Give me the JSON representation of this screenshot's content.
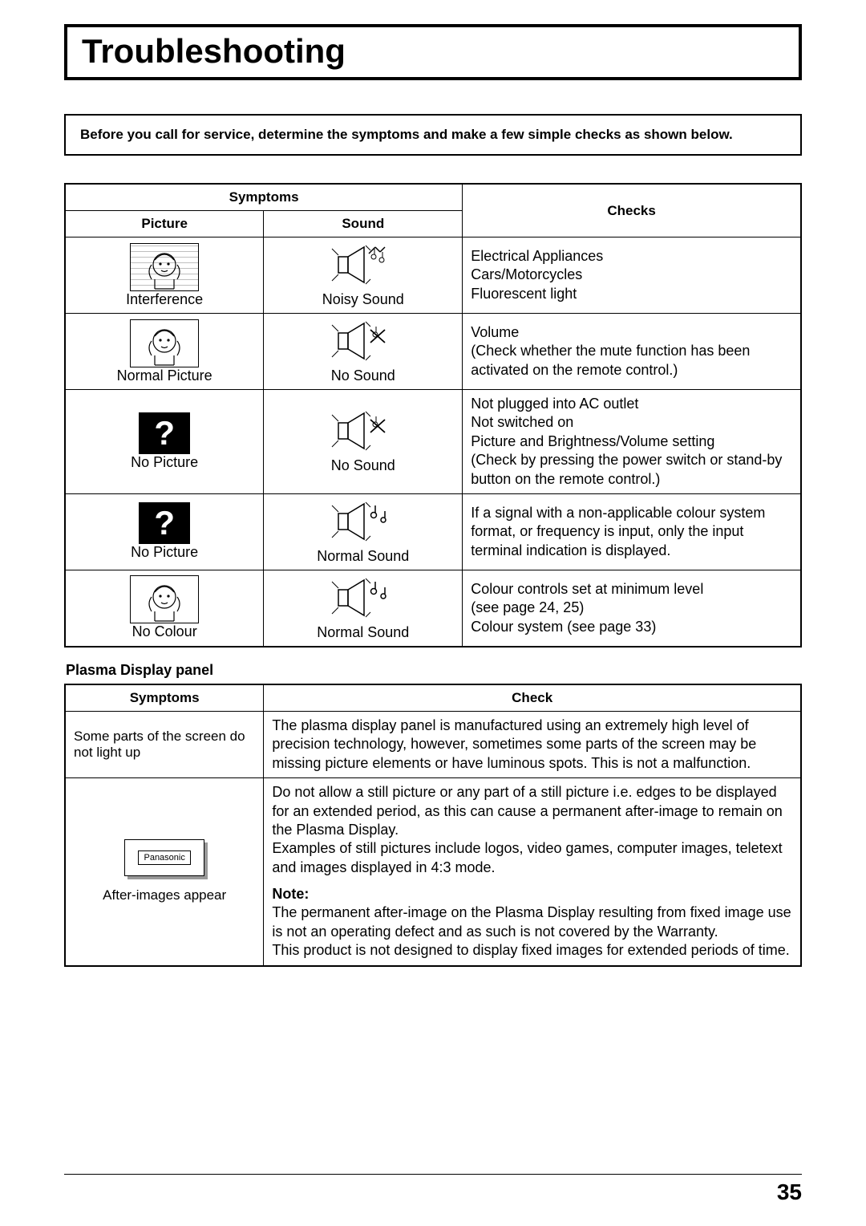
{
  "title": "Troubleshooting",
  "intro": "Before you call for service, determine the symptoms and make a few simple checks as shown below.",
  "table1": {
    "header_symptoms": "Symptoms",
    "header_picture": "Picture",
    "header_sound": "Sound",
    "header_checks": "Checks",
    "rows": [
      {
        "picture_type": "interference",
        "picture_label": "Interference",
        "sound_type": "noisy",
        "sound_label": "Noisy Sound",
        "check": "Electrical Appliances\nCars/Motorcycles\nFluorescent light"
      },
      {
        "picture_type": "normal",
        "picture_label": "Normal Picture",
        "sound_type": "mute",
        "sound_label": "No Sound",
        "check": "Volume\n(Check whether the mute function has been activated on the remote control.)"
      },
      {
        "picture_type": "none",
        "picture_label": "No Picture",
        "sound_type": "mute",
        "sound_label": "No Sound",
        "check": "Not plugged into AC outlet\nNot switched on\nPicture and Brightness/Volume setting\n(Check by pressing the power switch or stand-by button on the remote control.)"
      },
      {
        "picture_type": "none",
        "picture_label": "No Picture",
        "sound_type": "normal",
        "sound_label": "Normal Sound",
        "check": "If a signal with a non-applicable colour system format, or frequency is input, only the input terminal indication is displayed."
      },
      {
        "picture_type": "normal",
        "picture_label": "No Colour",
        "sound_type": "normal",
        "sound_label": "Normal Sound",
        "check": "Colour controls set at minimum level\n(see page 24, 25)\nColour system (see page 33)"
      }
    ]
  },
  "plasma_heading": "Plasma Display panel",
  "table2": {
    "header_symptoms": "Symptoms",
    "header_check": "Check",
    "rows": [
      {
        "symptom_type": "text",
        "symptom": "Some parts of the screen do not light up",
        "check": "The plasma display panel is manufactured using an extremely high level of precision technology, however, sometimes some parts of the screen may be missing picture elements or have luminous spots. This is not a malfunction."
      },
      {
        "symptom_type": "logo",
        "symptom_logo": "Panasonic",
        "symptom": "After-images appear",
        "check_main": "Do not allow a still picture or any part of a still picture i.e. edges to be displayed for an extended period, as this can cause a permanent after-image to remain on the Plasma Display.\nExamples of still pictures include logos, video games, computer images, teletext and images displayed in 4:3 mode.",
        "note_label": "Note:",
        "note": "The permanent after-image on the Plasma Display resulting from fixed image use is not an operating defect and as such is not covered by the Warranty.\nThis product is not designed to display fixed images for extended periods of time."
      }
    ]
  },
  "page_number": "35"
}
